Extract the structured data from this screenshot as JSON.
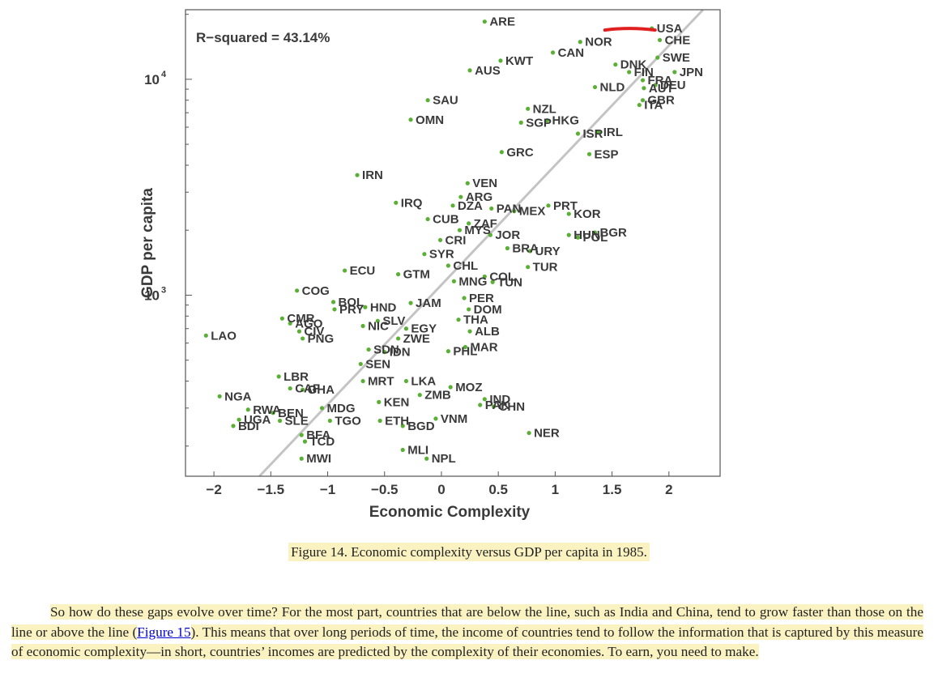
{
  "chart_data": {
    "type": "scatter",
    "xlabel": "Economic Complexity",
    "ylabel": "GDP per capita",
    "annotation": "R−squared = 43.14%",
    "xlim": [
      -2.25,
      2.45
    ],
    "ylim": [
      145,
      21000
    ],
    "y_scale": "log",
    "x_ticks": [
      -2,
      -1.5,
      -1,
      -0.5,
      0,
      0.5,
      1,
      1.5,
      2
    ],
    "x_tick_labels": [
      "−2",
      "−1.5",
      "−1",
      "−0.5",
      "0",
      "0.5",
      "1",
      "1.5",
      "2"
    ],
    "y_ticks": [
      1000,
      10000
    ],
    "y_tick_base": "10",
    "y_tick_exponents": [
      "3",
      "4"
    ],
    "grid": false,
    "fit_line": {
      "x": [
        -1.6,
        2.3
      ],
      "y": [
        145,
        21000
      ]
    },
    "point_color": "#5ab034",
    "line_color": "#c4c4c4",
    "highlight_color": "#e02020",
    "highlight_label": "USA",
    "points": [
      {
        "label": "ARE",
        "x": 0.38,
        "y": 18500
      },
      {
        "label": "USA",
        "x": 1.85,
        "y": 17200
      },
      {
        "label": "CHE",
        "x": 1.92,
        "y": 15200
      },
      {
        "label": "NOR",
        "x": 1.22,
        "y": 14900
      },
      {
        "label": "CAN",
        "x": 0.98,
        "y": 13300
      },
      {
        "label": "KWT",
        "x": 0.52,
        "y": 12200
      },
      {
        "label": "DNK",
        "x": 1.53,
        "y": 11700
      },
      {
        "label": "SWE",
        "x": 1.9,
        "y": 12600
      },
      {
        "label": "AUS",
        "x": 0.25,
        "y": 11000
      },
      {
        "label": "FIN",
        "x": 1.65,
        "y": 10800
      },
      {
        "label": "JPN",
        "x": 2.05,
        "y": 10800
      },
      {
        "label": "FRA",
        "x": 1.77,
        "y": 9900
      },
      {
        "label": "NLD",
        "x": 1.35,
        "y": 9200
      },
      {
        "label": "AUT",
        "x": 1.78,
        "y": 9100
      },
      {
        "label": "DEU",
        "x": 1.88,
        "y": 9400
      },
      {
        "label": "GBR",
        "x": 1.77,
        "y": 8000
      },
      {
        "label": "ITA",
        "x": 1.74,
        "y": 7600
      },
      {
        "label": "SAU",
        "x": -0.12,
        "y": 8000
      },
      {
        "label": "NZL",
        "x": 0.76,
        "y": 7300
      },
      {
        "label": "OMN",
        "x": -0.27,
        "y": 6500
      },
      {
        "label": "SGP",
        "x": 0.7,
        "y": 6300
      },
      {
        "label": "HKG",
        "x": 0.93,
        "y": 6450
      },
      {
        "label": "IRL",
        "x": 1.38,
        "y": 5700
      },
      {
        "label": "ISR",
        "x": 1.2,
        "y": 5600
      },
      {
        "label": "ESP",
        "x": 1.3,
        "y": 4500
      },
      {
        "label": "GRC",
        "x": 0.53,
        "y": 4600
      },
      {
        "label": "IRN",
        "x": -0.74,
        "y": 3600
      },
      {
        "label": "VEN",
        "x": 0.23,
        "y": 3300
      },
      {
        "label": "ARG",
        "x": 0.17,
        "y": 2850
      },
      {
        "label": "IRQ",
        "x": -0.4,
        "y": 2680
      },
      {
        "label": "DZA",
        "x": 0.1,
        "y": 2600
      },
      {
        "label": "PAN",
        "x": 0.44,
        "y": 2520
      },
      {
        "label": "MEX",
        "x": 0.64,
        "y": 2450
      },
      {
        "label": "PRT",
        "x": 0.94,
        "y": 2600
      },
      {
        "label": "KOR",
        "x": 1.12,
        "y": 2380
      },
      {
        "label": "CUB",
        "x": -0.12,
        "y": 2250
      },
      {
        "label": "ZAF",
        "x": 0.24,
        "y": 2150
      },
      {
        "label": "MYS",
        "x": 0.16,
        "y": 2000
      },
      {
        "label": "JOR",
        "x": 0.43,
        "y": 1900
      },
      {
        "label": "HUN",
        "x": 1.12,
        "y": 1900
      },
      {
        "label": "BGR",
        "x": 1.35,
        "y": 1950
      },
      {
        "label": "CRI",
        "x": -0.01,
        "y": 1800
      },
      {
        "label": "POL",
        "x": 1.2,
        "y": 1850
      },
      {
        "label": "BRA",
        "x": 0.58,
        "y": 1650
      },
      {
        "label": "URY",
        "x": 0.78,
        "y": 1600
      },
      {
        "label": "SYR",
        "x": -0.15,
        "y": 1550
      },
      {
        "label": "CHL",
        "x": 0.06,
        "y": 1370
      },
      {
        "label": "TUR",
        "x": 0.76,
        "y": 1350
      },
      {
        "label": "ECU",
        "x": -0.85,
        "y": 1300
      },
      {
        "label": "GTM",
        "x": -0.38,
        "y": 1250
      },
      {
        "label": "COL",
        "x": 0.38,
        "y": 1220
      },
      {
        "label": "MNG",
        "x": 0.11,
        "y": 1160
      },
      {
        "label": "TUN",
        "x": 0.45,
        "y": 1150
      },
      {
        "label": "COG",
        "x": -1.27,
        "y": 1050
      },
      {
        "label": "PER",
        "x": 0.2,
        "y": 970
      },
      {
        "label": "BOL",
        "x": -0.95,
        "y": 930
      },
      {
        "label": "JAM",
        "x": -0.27,
        "y": 920
      },
      {
        "label": "HND",
        "x": -0.67,
        "y": 880
      },
      {
        "label": "PRY",
        "x": -0.94,
        "y": 860
      },
      {
        "label": "DOM",
        "x": 0.24,
        "y": 860
      },
      {
        "label": "CMR",
        "x": -1.4,
        "y": 780
      },
      {
        "label": "SLV",
        "x": -0.56,
        "y": 760
      },
      {
        "label": "AGO",
        "x": -1.33,
        "y": 740
      },
      {
        "label": "THA",
        "x": 0.15,
        "y": 770
      },
      {
        "label": "NIC",
        "x": -0.69,
        "y": 720
      },
      {
        "label": "CIV",
        "x": -1.25,
        "y": 680
      },
      {
        "label": "EGY",
        "x": -0.31,
        "y": 700
      },
      {
        "label": "LAO",
        "x": -2.07,
        "y": 650
      },
      {
        "label": "ALB",
        "x": 0.25,
        "y": 680
      },
      {
        "label": "PNG",
        "x": -1.22,
        "y": 630
      },
      {
        "label": "ZWE",
        "x": -0.38,
        "y": 630
      },
      {
        "label": "SDN",
        "x": -0.64,
        "y": 560
      },
      {
        "label": "MAR",
        "x": 0.21,
        "y": 575
      },
      {
        "label": "IDN",
        "x": -0.5,
        "y": 545
      },
      {
        "label": "PHL",
        "x": 0.06,
        "y": 550
      },
      {
        "label": "SEN",
        "x": -0.71,
        "y": 480
      },
      {
        "label": "LBR",
        "x": -1.43,
        "y": 420
      },
      {
        "label": "MRT",
        "x": -0.69,
        "y": 400
      },
      {
        "label": "LKA",
        "x": -0.31,
        "y": 400
      },
      {
        "label": "MOZ",
        "x": 0.08,
        "y": 375
      },
      {
        "label": "CAF",
        "x": -1.33,
        "y": 370
      },
      {
        "label": "GHA",
        "x": -1.22,
        "y": 365
      },
      {
        "label": "ZMB",
        "x": -0.19,
        "y": 345
      },
      {
        "label": "NGA",
        "x": -1.95,
        "y": 340
      },
      {
        "label": "IND",
        "x": 0.38,
        "y": 330
      },
      {
        "label": "KEN",
        "x": -0.55,
        "y": 320
      },
      {
        "label": "PAK",
        "x": 0.34,
        "y": 310
      },
      {
        "label": "CHN",
        "x": 0.46,
        "y": 305
      },
      {
        "label": "RWA",
        "x": -1.7,
        "y": 295
      },
      {
        "label": "MDG",
        "x": -1.05,
        "y": 300
      },
      {
        "label": "BEN",
        "x": -1.48,
        "y": 285
      },
      {
        "label": "UGA",
        "x": -1.78,
        "y": 265
      },
      {
        "label": "SLE",
        "x": -1.42,
        "y": 262
      },
      {
        "label": "TGO",
        "x": -0.98,
        "y": 262
      },
      {
        "label": "VNM",
        "x": -0.05,
        "y": 268
      },
      {
        "label": "BDI",
        "x": -1.83,
        "y": 248
      },
      {
        "label": "ETH",
        "x": -0.54,
        "y": 262
      },
      {
        "label": "BGD",
        "x": -0.34,
        "y": 248
      },
      {
        "label": "NER",
        "x": 0.77,
        "y": 230
      },
      {
        "label": "BFA",
        "x": -1.23,
        "y": 225
      },
      {
        "label": "TCD",
        "x": -1.2,
        "y": 210
      },
      {
        "label": "MLI",
        "x": -0.34,
        "y": 192
      },
      {
        "label": "NPL",
        "x": -0.13,
        "y": 175
      },
      {
        "label": "MWI",
        "x": -1.23,
        "y": 175
      }
    ]
  },
  "caption": "Figure 14. Economic complexity versus GDP per capita in 1985.",
  "paragraph": {
    "before_link": "So how do these gaps evolve over time? For the most part, countries that are below the line, such as India and China, tend to grow faster than those on the line or above the line (",
    "link_text": "Figure 15",
    "after_link": "). This means that over long periods of time, the income of countries tend to follow the information that is captured by this measure of economic complexity—in short, countries’ incomes are predicted by the complexity of their economies. To earn, you need to make."
  }
}
